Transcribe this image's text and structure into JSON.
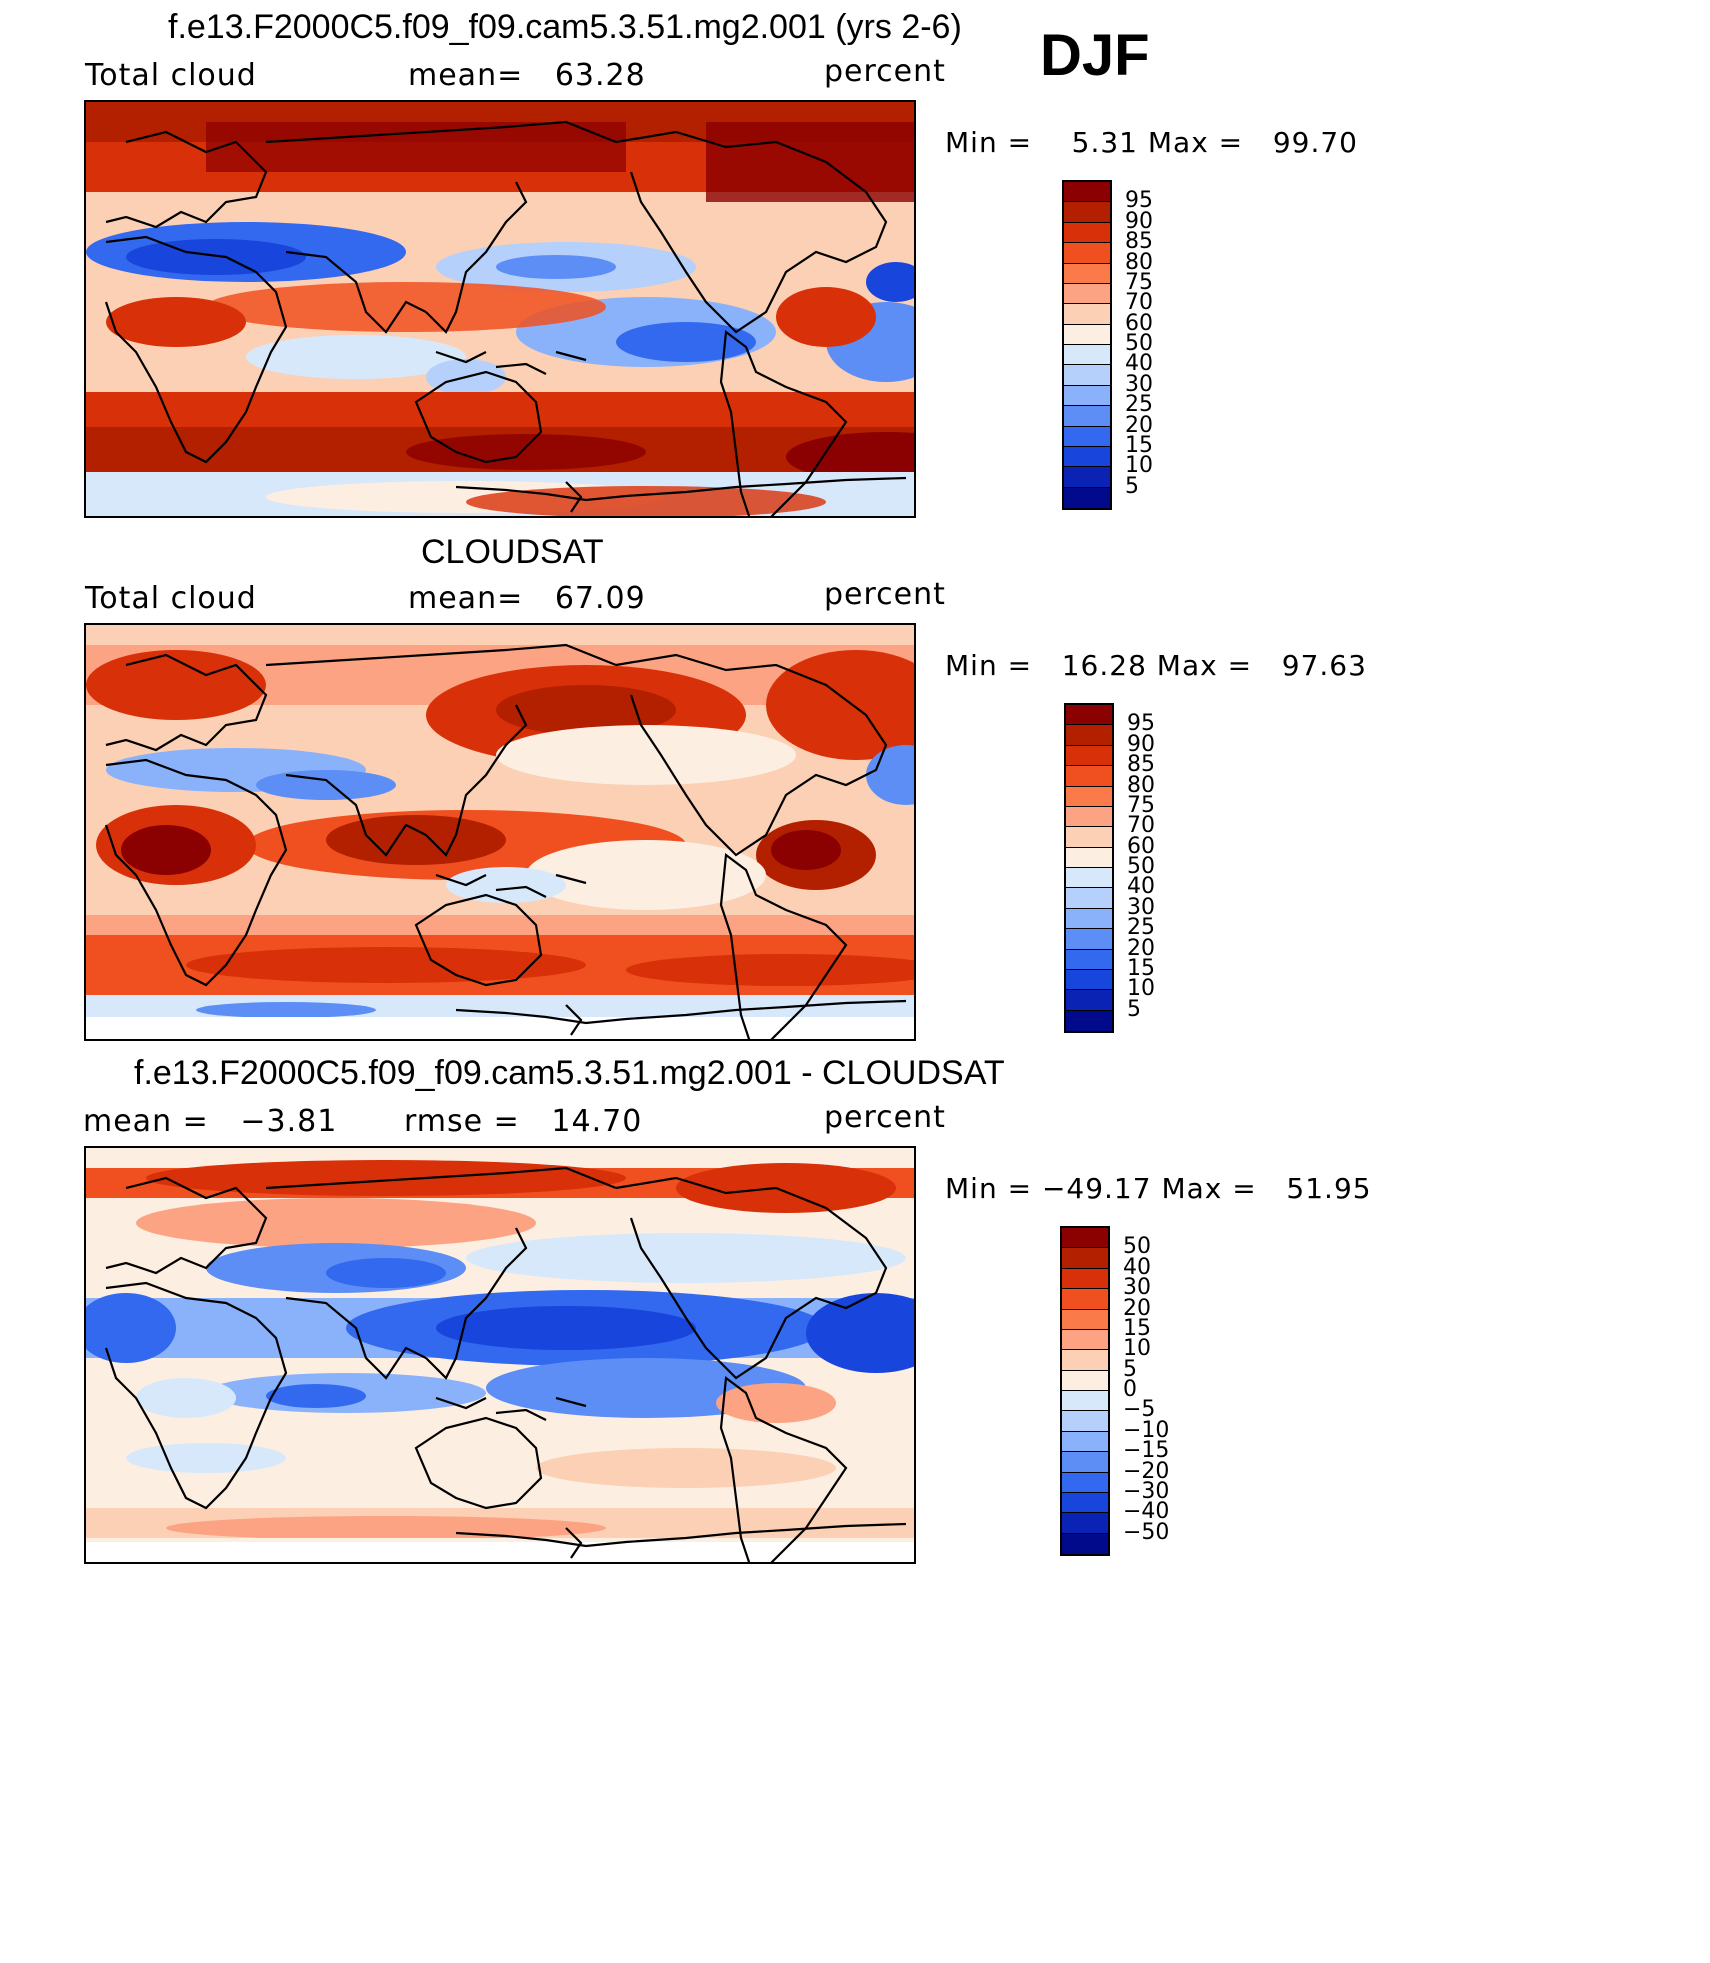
{
  "header": {
    "season": "DJF"
  },
  "panels": [
    {
      "title": "f.e13.F2000C5.f09_f09.cam5.3.51.mg2.001 (yrs 2-6)",
      "left_label": "Total cloud",
      "center_label": "mean=   63.28",
      "units": "percent",
      "minmax": "Min =    5.31 Max =   99.70",
      "colorbar_labels": [
        "95",
        "90",
        "85",
        "80",
        "75",
        "70",
        "60",
        "50",
        "40",
        "30",
        "25",
        "20",
        "15",
        "10",
        "5"
      ],
      "colors": [
        "#8b0000",
        "#b22000",
        "#d83008",
        "#f05020",
        "#fb7a4a",
        "#fca383",
        "#fbd0b4",
        "#fdeee2",
        "#d8e8fb",
        "#b4d0fb",
        "#8ab2fb",
        "#5c8ef5",
        "#3369ef",
        "#1845db",
        "#0a23b4",
        "#000a8a"
      ]
    },
    {
      "title": "CLOUDSAT",
      "left_label": "Total cloud",
      "center_label": "mean=   67.09",
      "units": "percent",
      "minmax": "Min =   16.28 Max =   97.63",
      "colorbar_labels": [
        "95",
        "90",
        "85",
        "80",
        "75",
        "70",
        "60",
        "50",
        "40",
        "30",
        "25",
        "20",
        "15",
        "10",
        "5"
      ],
      "colors": [
        "#8b0000",
        "#b22000",
        "#d83008",
        "#f05020",
        "#fb7a4a",
        "#fca383",
        "#fbd0b4",
        "#fdeee2",
        "#d8e8fb",
        "#b4d0fb",
        "#8ab2fb",
        "#5c8ef5",
        "#3369ef",
        "#1845db",
        "#0a23b4",
        "#000a8a"
      ]
    },
    {
      "title": "f.e13.F2000C5.f09_f09.cam5.3.51.mg2.001 - CLOUDSAT",
      "left_label": "mean =   −3.81",
      "center_label": "rmse =   14.70",
      "units": "percent",
      "minmax": "Min = −49.17 Max =   51.95",
      "colorbar_labels": [
        "50",
        "40",
        "30",
        "20",
        "15",
        "10",
        "5",
        "0",
        "−5",
        "−10",
        "−15",
        "−20",
        "−30",
        "−40",
        "−50"
      ],
      "colors": [
        "#8b0000",
        "#b22000",
        "#d83008",
        "#f05020",
        "#fb7a4a",
        "#fca383",
        "#fbd0b4",
        "#fdeee2",
        "#d8e8fb",
        "#b4d0fb",
        "#8ab2fb",
        "#5c8ef5",
        "#3369ef",
        "#1845db",
        "#0a23b4",
        "#000a8a"
      ]
    }
  ]
}
